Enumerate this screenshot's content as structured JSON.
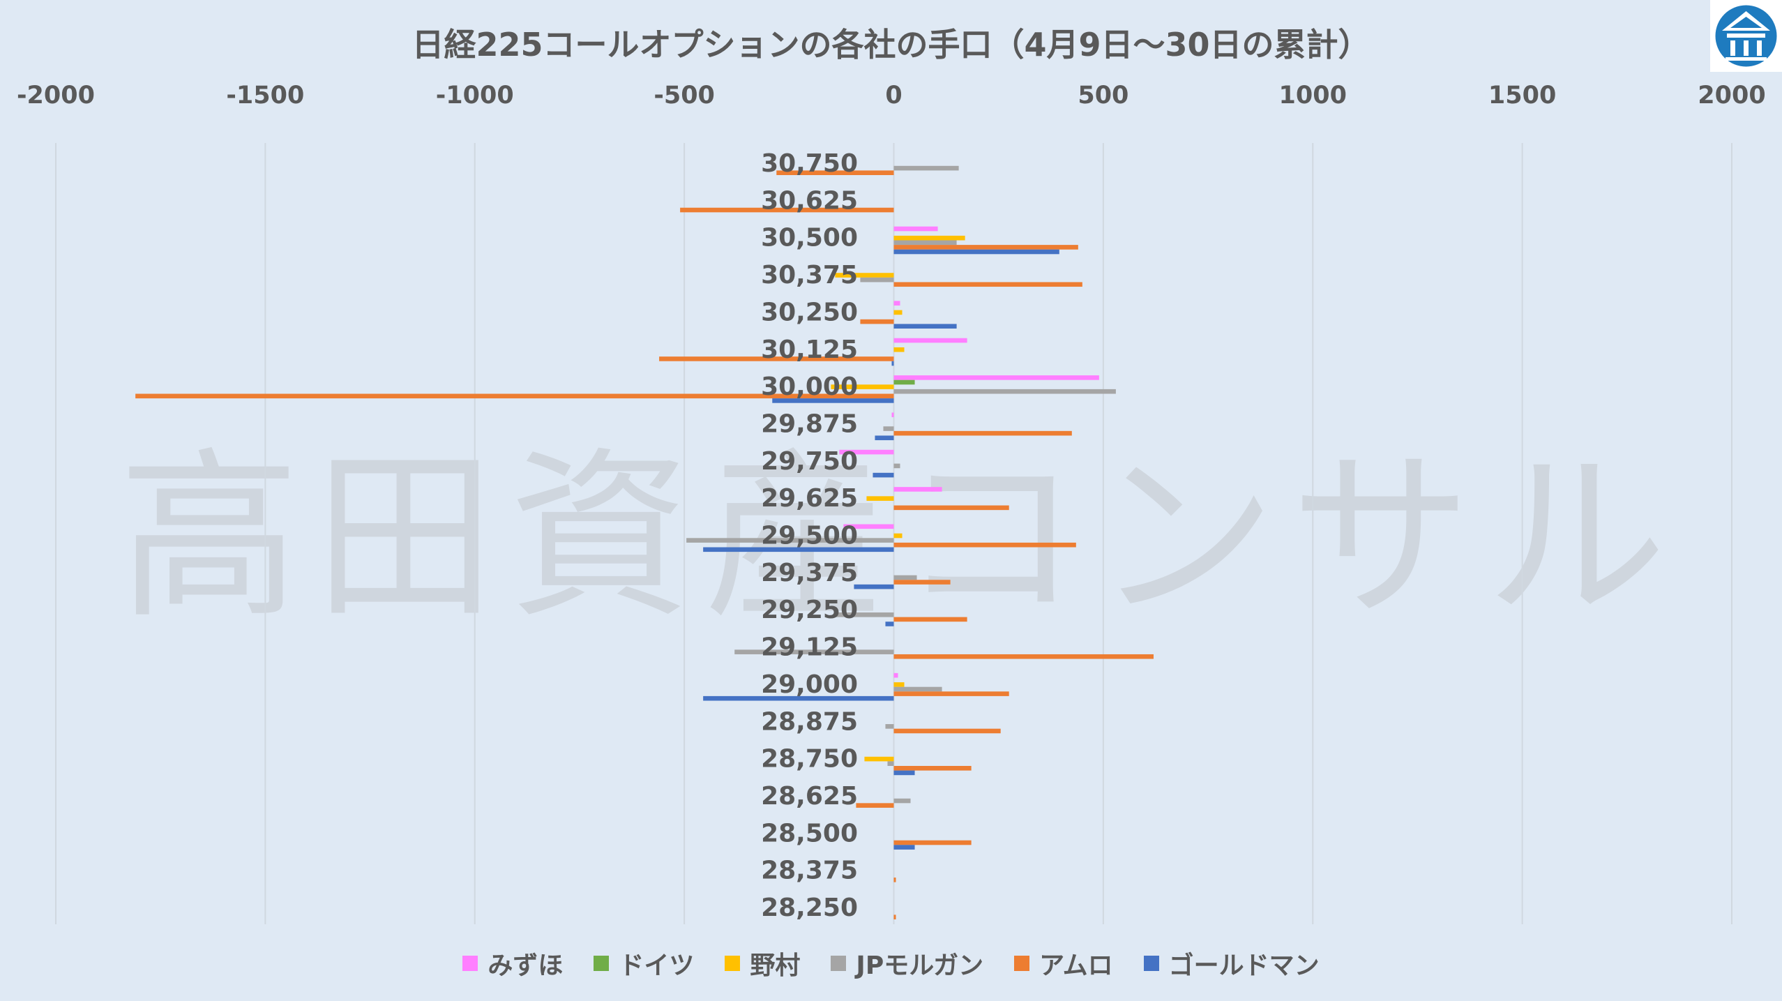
{
  "title": "日経225コールオプションの各社の手口（4月9日～30日の累計）",
  "watermark": "高田資産コンサル",
  "logo": {
    "name": "takada-logo-icon",
    "color": "#1e7bbf"
  },
  "colors": {
    "background": "#dfe9f4",
    "gridline": "#d0d8e0",
    "text": "#595959"
  },
  "chart_data": {
    "type": "bar",
    "orientation": "horizontal",
    "grid": true,
    "legend_position": "bottom",
    "xlim": [
      -2000,
      2000
    ],
    "xticks": [
      -2000,
      -1500,
      -1000,
      -500,
      0,
      500,
      1000,
      1500,
      2000
    ],
    "xtick_labels": [
      "-2000",
      "-1500",
      "-1000",
      "-500",
      "0",
      "500",
      "1000",
      "1500",
      "2000"
    ],
    "categories": [
      "30,750",
      "30,625",
      "30,500",
      "30,375",
      "30,250",
      "30,125",
      "30,000",
      "29,875",
      "29,750",
      "29,625",
      "29,500",
      "29,375",
      "29,250",
      "29,125",
      "29,000",
      "28,875",
      "28,750",
      "28,625",
      "28,500",
      "28,375",
      "28,250"
    ],
    "series": [
      {
        "name": "みずほ",
        "color": "#ff7fff",
        "values": [
          0,
          0,
          105,
          0,
          15,
          175,
          490,
          -5,
          -130,
          115,
          -120,
          0,
          0,
          0,
          10,
          0,
          0,
          0,
          0,
          0,
          0
        ]
      },
      {
        "name": "ドイツ",
        "color": "#70ad47",
        "values": [
          0,
          0,
          0,
          0,
          0,
          0,
          50,
          0,
          0,
          0,
          0,
          0,
          0,
          0,
          0,
          0,
          0,
          0,
          0,
          0,
          0
        ]
      },
      {
        "name": "野村",
        "color": "#ffc000",
        "values": [
          0,
          0,
          170,
          -140,
          20,
          25,
          -150,
          0,
          0,
          -65,
          20,
          0,
          0,
          0,
          25,
          0,
          -70,
          0,
          0,
          0,
          0
        ]
      },
      {
        "name": "JPモルガン",
        "color": "#a5a5a5",
        "values": [
          155,
          0,
          150,
          -80,
          0,
          0,
          530,
          -25,
          15,
          0,
          -495,
          55,
          -140,
          -380,
          115,
          -20,
          -15,
          40,
          0,
          0,
          0
        ]
      },
      {
        "name": "アムロ",
        "color": "#ed7d31",
        "values": [
          -280,
          -510,
          440,
          450,
          -80,
          -560,
          -1810,
          425,
          0,
          275,
          435,
          135,
          175,
          620,
          275,
          255,
          185,
          -90,
          185,
          5,
          5
        ]
      },
      {
        "name": "ゴールドマン",
        "color": "#4472c4",
        "values": [
          0,
          0,
          395,
          0,
          150,
          -5,
          -290,
          -45,
          -50,
          0,
          -455,
          -95,
          -20,
          0,
          -455,
          0,
          50,
          0,
          50,
          0,
          0
        ]
      }
    ]
  }
}
